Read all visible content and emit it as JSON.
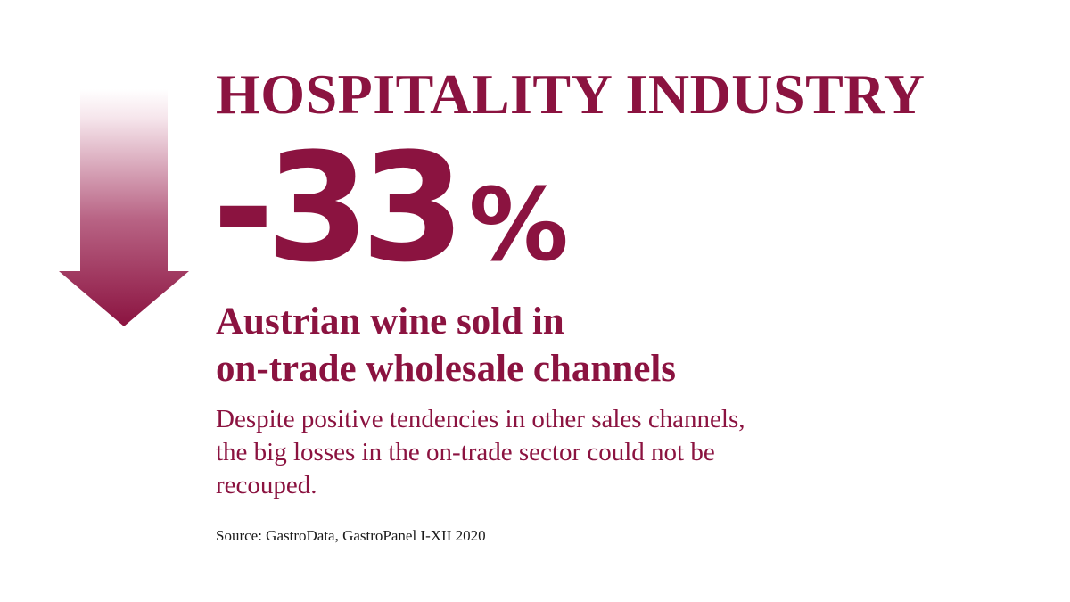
{
  "colors": {
    "accent": "#8b1340",
    "arrow_fade": "#ffffff",
    "source_text": "#1a1a1a",
    "background": "#ffffff"
  },
  "icons": {
    "arrow": "down-arrow-icon"
  },
  "infographic": {
    "heading": "HOSPITALITY INDUSTRY",
    "stat": {
      "value": "-33",
      "unit": "%"
    },
    "subheading": {
      "line1": "Austrian wine sold in",
      "line2": "on-trade wholesale channels"
    },
    "description": {
      "line1": "Despite positive tendencies in other sales channels,",
      "line2": "the big losses in the on-trade sector could not be",
      "line3": "recouped."
    },
    "source": "Source: GastroData, GastroPanel I-XII 2020"
  }
}
